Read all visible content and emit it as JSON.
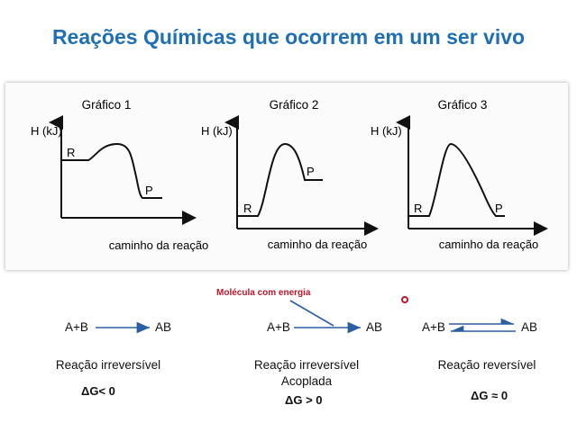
{
  "title": "Reações Químicas que ocorrem em um ser vivo",
  "graphs": [
    {
      "name": "Gráfico 1",
      "ylabel": "H (kJ)",
      "xlabel": "caminho da reação",
      "reactant": "R",
      "product": "P"
    },
    {
      "name": "Gráfico 2",
      "ylabel": "H (kJ)",
      "xlabel": "caminho da reação",
      "reactant": "R",
      "product": "P"
    },
    {
      "name": "Gráfico 3",
      "ylabel": "H (kJ)",
      "xlabel": "caminho da reação",
      "reactant": "R",
      "product": "P"
    }
  ],
  "reactions": [
    {
      "reactants": "A+B",
      "product": "AB",
      "label": "Reação irreversível",
      "sublabel": "",
      "delta_g": "ΔG< 0"
    },
    {
      "reactants": "A+B",
      "product": "AB",
      "label": "Reação irreversível",
      "sublabel": "Acoplada",
      "delta_g": "ΔG > 0",
      "input": "Molécula com energia"
    },
    {
      "reactants": "A+B",
      "product": "AB",
      "label": "Reação reversível",
      "sublabel": "",
      "delta_g": "ΔG ≈ 0"
    }
  ],
  "colors": {
    "title": "#1f6fb5",
    "arrow": "#2b5fa3",
    "molecule": "#c0172a"
  }
}
